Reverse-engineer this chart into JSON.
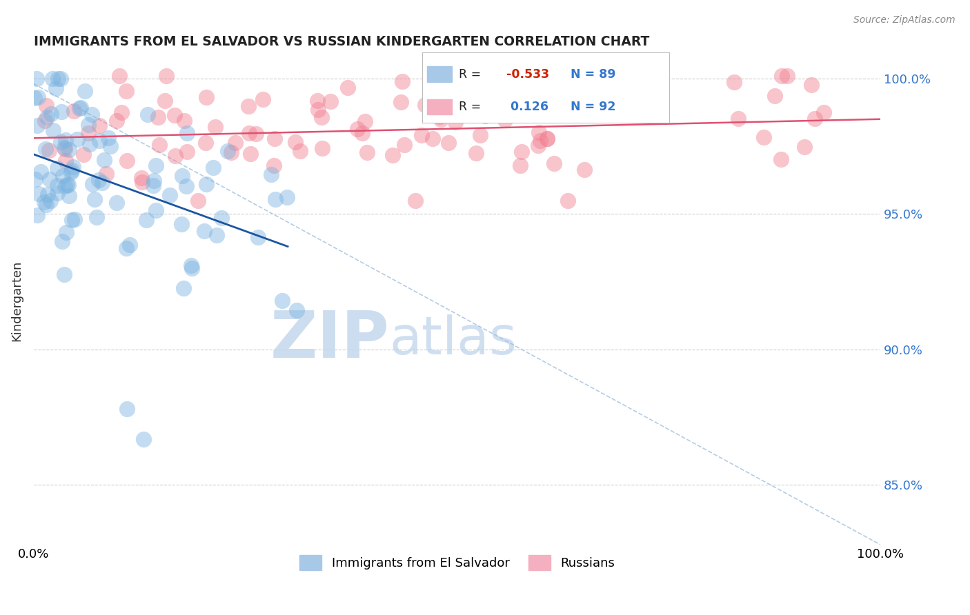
{
  "title": "IMMIGRANTS FROM EL SALVADOR VS RUSSIAN KINDERGARTEN CORRELATION CHART",
  "source_text": "Source: ZipAtlas.com",
  "ylabel": "Kindergarten",
  "x_min": 0.0,
  "x_max": 1.0,
  "y_min": 0.828,
  "y_max": 1.008,
  "y_ticks": [
    0.85,
    0.9,
    0.95,
    1.0
  ],
  "y_tick_labels": [
    "85.0%",
    "90.0%",
    "95.0%",
    "100.0%"
  ],
  "legend_blue_r": "-0.533",
  "legend_blue_n": "89",
  "legend_pink_r": "0.126",
  "legend_pink_n": "92",
  "legend_label_blue": "Immigrants from El Salvador",
  "legend_label_pink": "Russians",
  "blue_color": "#7ab3e0",
  "pink_color": "#f08090",
  "blue_line_color": "#1a56a0",
  "pink_line_color": "#e05070",
  "dash_line_color": "#a0c0e0",
  "watermark_zip": "ZIP",
  "watermark_atlas": "atlas",
  "background_color": "#ffffff",
  "grid_color": "#cccccc",
  "seed": 7,
  "n_blue": 89,
  "n_pink": 92
}
